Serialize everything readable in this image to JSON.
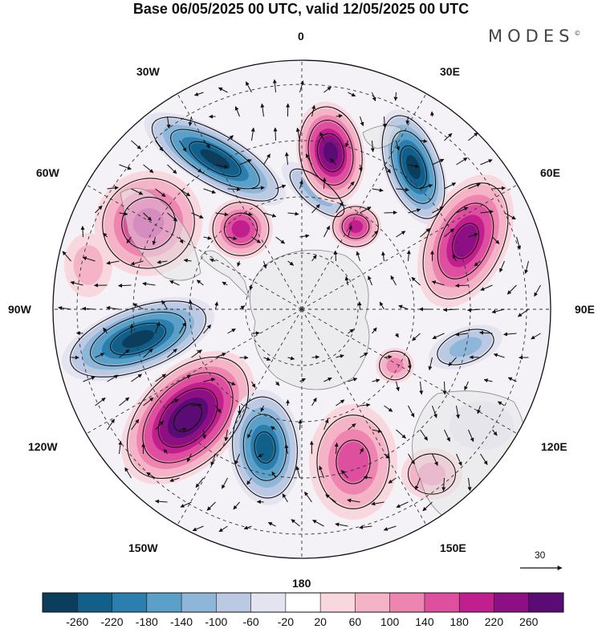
{
  "header": {
    "title": "Base 06/05/2025 00 UTC, valid 12/05/2025 00 UTC",
    "brand": "MODES",
    "brand_mark": "©"
  },
  "map": {
    "projection": "south-polar-stereographic",
    "longitude_labels": {
      "lon_0": "0",
      "lon_30w": "30W",
      "lon_30e": "30E",
      "lon_60w": "60W",
      "lon_60e": "60E",
      "lon_90w": "90W",
      "lon_90e": "90E",
      "lon_120w": "120W",
      "lon_120e": "120E",
      "lon_150w": "150W",
      "lon_150e": "150E",
      "lon_180": "180"
    },
    "reference_vector": "30",
    "colors": {
      "land": "#e6e6e6",
      "coast": "#888888",
      "grid": "#333333"
    }
  },
  "colorbar": {
    "ticks": [
      "-260",
      "-220",
      "-180",
      "-140",
      "-100",
      "-60",
      "-20",
      "20",
      "60",
      "100",
      "140",
      "180",
      "220",
      "260"
    ],
    "colors": [
      "#0b3d5c",
      "#12608a",
      "#2a7fae",
      "#5aa0c8",
      "#8db6d8",
      "#bcc9e3",
      "#e4e4f1",
      "#ffffff",
      "#f9d7df",
      "#f5b3c7",
      "#ee84b0",
      "#df4f9f",
      "#c21f8e",
      "#8d0f84",
      "#5b0c74"
    ]
  }
}
